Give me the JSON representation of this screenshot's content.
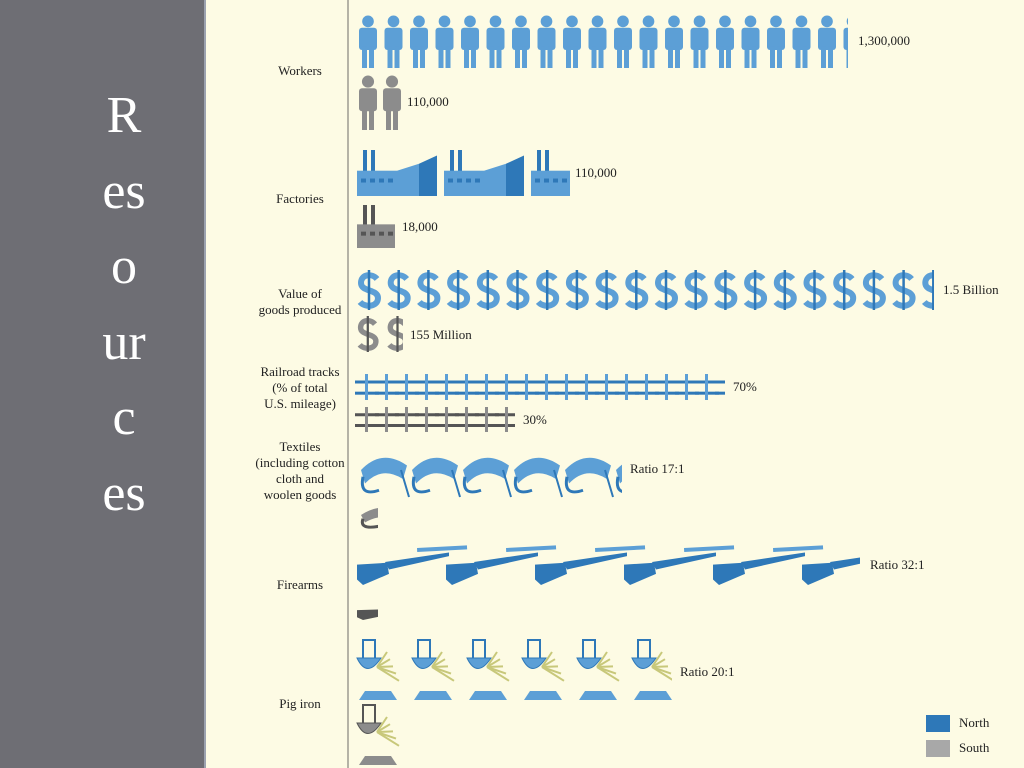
{
  "sidebar": {
    "title": "Resources"
  },
  "rows": [
    {
      "label": [
        "Workers"
      ],
      "north": "1,300,000",
      "south": "110,000"
    },
    {
      "label": [
        "Factories"
      ],
      "north": "110,000",
      "south": "18,000"
    },
    {
      "label": [
        "Value of",
        "goods produced"
      ],
      "north": "1.5 Billion",
      "south": "155 Million"
    },
    {
      "label": [
        "Railroad tracks",
        "(% of total",
        "U.S. mileage)"
      ],
      "north": "70%",
      "south": "30%"
    },
    {
      "label": [
        "Textiles",
        "(including cotton",
        "cloth and",
        "woolen goods"
      ],
      "north": "Ratio 17:1"
    },
    {
      "label": [
        "Firearms"
      ],
      "north": "Ratio 32:1"
    },
    {
      "label": [
        "Pig iron"
      ],
      "north": "Ratio 20:1"
    }
  ],
  "legend": {
    "north": "North",
    "south": "South"
  }
}
